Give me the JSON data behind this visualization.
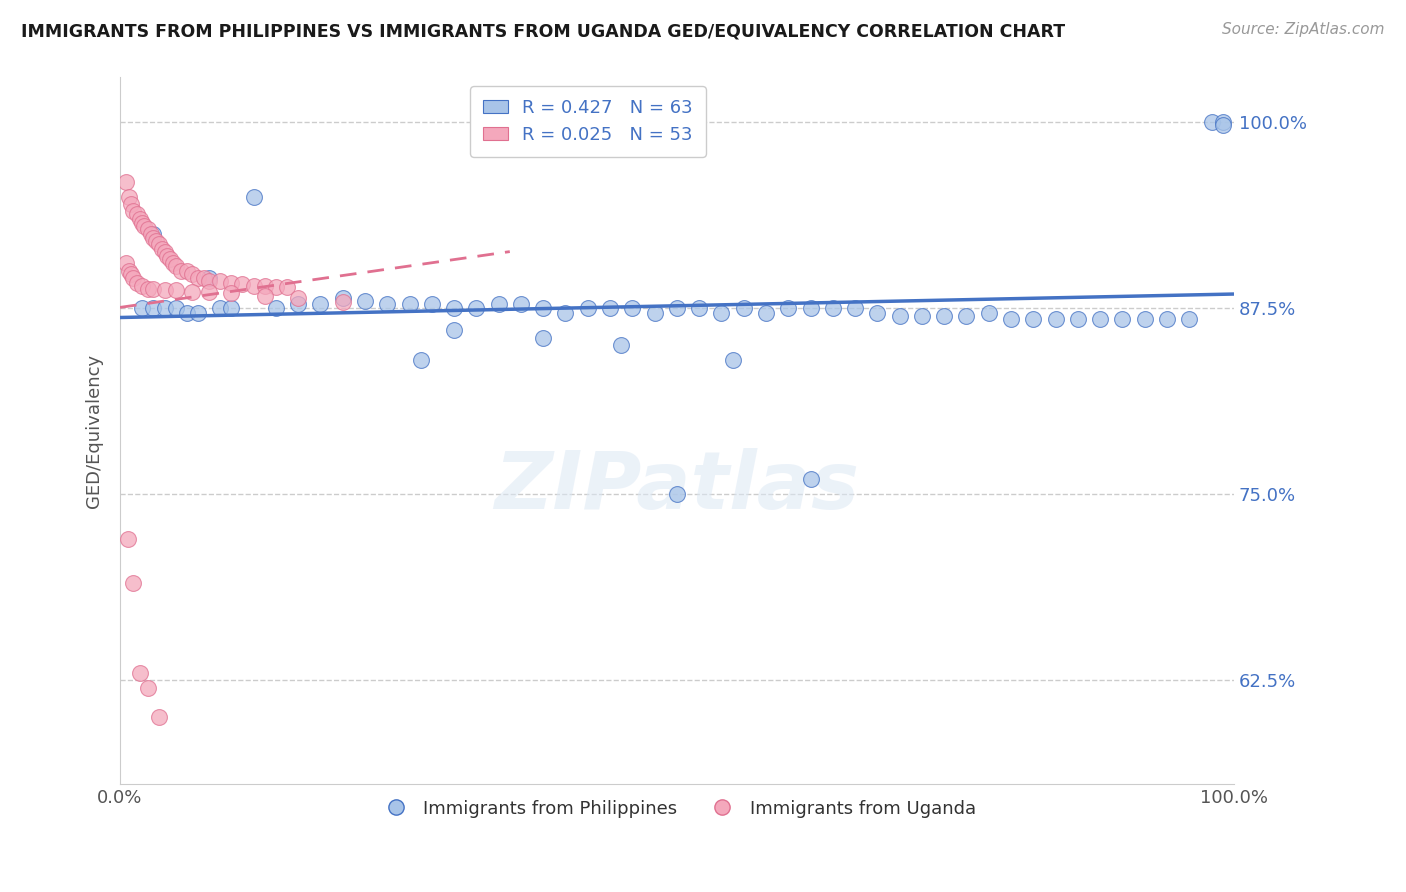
{
  "title": "IMMIGRANTS FROM PHILIPPINES VS IMMIGRANTS FROM UGANDA GED/EQUIVALENCY CORRELATION CHART",
  "source": "Source: ZipAtlas.com",
  "ylabel": "GED/Equivalency",
  "xlabel": "",
  "xlim": [
    0.0,
    1.0
  ],
  "ylim": [
    0.555,
    1.03
  ],
  "yticks": [
    0.625,
    0.75,
    0.875,
    1.0
  ],
  "ytick_labels": [
    "62.5%",
    "75.0%",
    "87.5%",
    "100.0%"
  ],
  "xticks": [
    0.0,
    1.0
  ],
  "xtick_labels": [
    "0.0%",
    "100.0%"
  ],
  "legend_R1": "R = 0.427",
  "legend_N1": "N = 63",
  "legend_R2": "R = 0.025",
  "legend_N2": "N = 53",
  "color_blue": "#a8c4e8",
  "color_pink": "#f4a8bc",
  "line_blue": "#4472c4",
  "line_pink": "#e07090",
  "dashed_line_color": "#cccccc",
  "watermark": "ZIPatlas",
  "blue_scatter_x": [
    0.02,
    0.03,
    0.04,
    0.05,
    0.06,
    0.07,
    0.08,
    0.09,
    0.1,
    0.12,
    0.14,
    0.16,
    0.18,
    0.2,
    0.22,
    0.24,
    0.26,
    0.28,
    0.3,
    0.32,
    0.34,
    0.36,
    0.38,
    0.4,
    0.42,
    0.44,
    0.46,
    0.48,
    0.5,
    0.52,
    0.54,
    0.56,
    0.58,
    0.6,
    0.62,
    0.64,
    0.66,
    0.68,
    0.7,
    0.72,
    0.74,
    0.76,
    0.78,
    0.8,
    0.82,
    0.84,
    0.86,
    0.88,
    0.9,
    0.92,
    0.94,
    0.96,
    0.98,
    0.99,
    0.99,
    0.27,
    0.38,
    0.5,
    0.62,
    0.3,
    0.45,
    0.55,
    0.03
  ],
  "blue_scatter_y": [
    0.875,
    0.875,
    0.875,
    0.875,
    0.872,
    0.872,
    0.895,
    0.875,
    0.875,
    0.95,
    0.875,
    0.878,
    0.878,
    0.882,
    0.88,
    0.878,
    0.878,
    0.878,
    0.875,
    0.875,
    0.878,
    0.878,
    0.875,
    0.872,
    0.875,
    0.875,
    0.875,
    0.872,
    0.875,
    0.875,
    0.872,
    0.875,
    0.872,
    0.875,
    0.875,
    0.875,
    0.875,
    0.872,
    0.87,
    0.87,
    0.87,
    0.87,
    0.872,
    0.868,
    0.868,
    0.868,
    0.868,
    0.868,
    0.868,
    0.868,
    0.868,
    0.868,
    1.0,
    1.0,
    0.998,
    0.84,
    0.855,
    0.75,
    0.76,
    0.86,
    0.85,
    0.84,
    0.925
  ],
  "pink_scatter_x": [
    0.005,
    0.008,
    0.01,
    0.012,
    0.015,
    0.018,
    0.02,
    0.022,
    0.025,
    0.028,
    0.03,
    0.032,
    0.035,
    0.038,
    0.04,
    0.042,
    0.045,
    0.048,
    0.05,
    0.055,
    0.06,
    0.065,
    0.07,
    0.075,
    0.08,
    0.09,
    0.1,
    0.11,
    0.12,
    0.13,
    0.14,
    0.15,
    0.005,
    0.008,
    0.01,
    0.012,
    0.015,
    0.02,
    0.025,
    0.03,
    0.04,
    0.05,
    0.065,
    0.08,
    0.1,
    0.13,
    0.16,
    0.2,
    0.007,
    0.012,
    0.018,
    0.025,
    0.035
  ],
  "pink_scatter_y": [
    0.96,
    0.95,
    0.945,
    0.94,
    0.938,
    0.935,
    0.932,
    0.93,
    0.928,
    0.925,
    0.922,
    0.92,
    0.918,
    0.915,
    0.913,
    0.91,
    0.908,
    0.905,
    0.903,
    0.9,
    0.9,
    0.898,
    0.895,
    0.895,
    0.893,
    0.893,
    0.892,
    0.891,
    0.89,
    0.89,
    0.889,
    0.889,
    0.905,
    0.9,
    0.898,
    0.895,
    0.892,
    0.89,
    0.888,
    0.888,
    0.887,
    0.887,
    0.886,
    0.886,
    0.885,
    0.883,
    0.882,
    0.879,
    0.72,
    0.69,
    0.63,
    0.62,
    0.6
  ]
}
